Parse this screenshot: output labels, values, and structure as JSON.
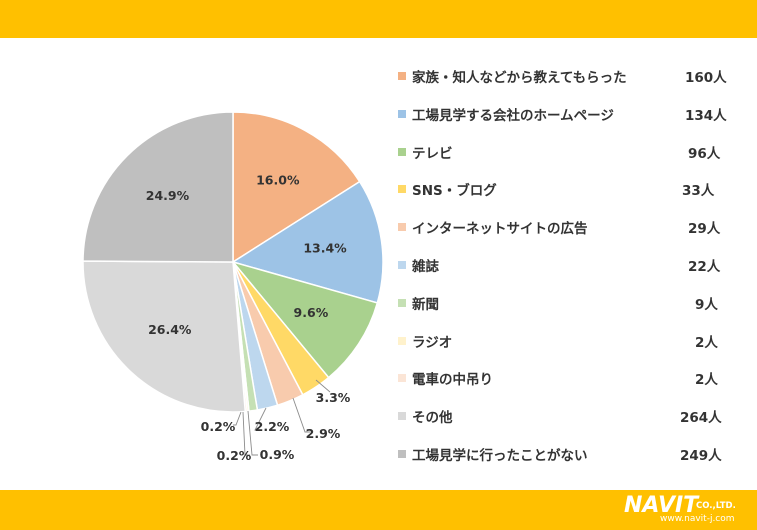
{
  "chart_data": {
    "type": "pie",
    "slices": [
      {
        "label": "家族・知人などから教えてもらった",
        "value": 160,
        "count_label": "160人",
        "percent_label": "16.0%",
        "color": "#F4B183"
      },
      {
        "label": "工場見学する会社のホームページ",
        "value": 134,
        "count_label": "134人",
        "percent_label": "13.4%",
        "color": "#9DC3E6"
      },
      {
        "label": "テレビ",
        "value": 96,
        "count_label": "96人",
        "percent_label": "9.6%",
        "color": "#A9D18E"
      },
      {
        "label": "SNS・ブログ",
        "value": 33,
        "count_label": "33人",
        "percent_label": "3.3%",
        "color": "#FFD966"
      },
      {
        "label": "インターネットサイトの広告",
        "value": 29,
        "count_label": "29人",
        "percent_label": "2.9%",
        "color": "#F8CBAD"
      },
      {
        "label": "雑誌",
        "value": 22,
        "count_label": "22人",
        "percent_label": "2.2%",
        "color": "#BDD7EE"
      },
      {
        "label": "新聞",
        "value": 9,
        "count_label": "9人",
        "percent_label": "0.9%",
        "color": "#C5E0B4"
      },
      {
        "label": "ラジオ",
        "value": 2,
        "count_label": "2人",
        "percent_label": "0.2%",
        "color": "#FFF2CC"
      },
      {
        "label": "電車の中吊り",
        "value": 2,
        "count_label": "2人",
        "percent_label": "0.2%",
        "color": "#FBE5D6"
      },
      {
        "label": "その他",
        "value": 264,
        "count_label": "264人",
        "percent_label": "26.4%",
        "color": "#D9D9D9"
      },
      {
        "label": "工場見学に行ったことがない",
        "value": 249,
        "count_label": "249人",
        "percent_label": "24.9%",
        "color": "#BFBFBF"
      }
    ],
    "legend_position": "right"
  },
  "branding": {
    "logo_text": "NAVIT",
    "logo_suffix": "CO.,LTD.",
    "logo_url": "www.navit-j.com",
    "band_color": "#FFC000"
  }
}
